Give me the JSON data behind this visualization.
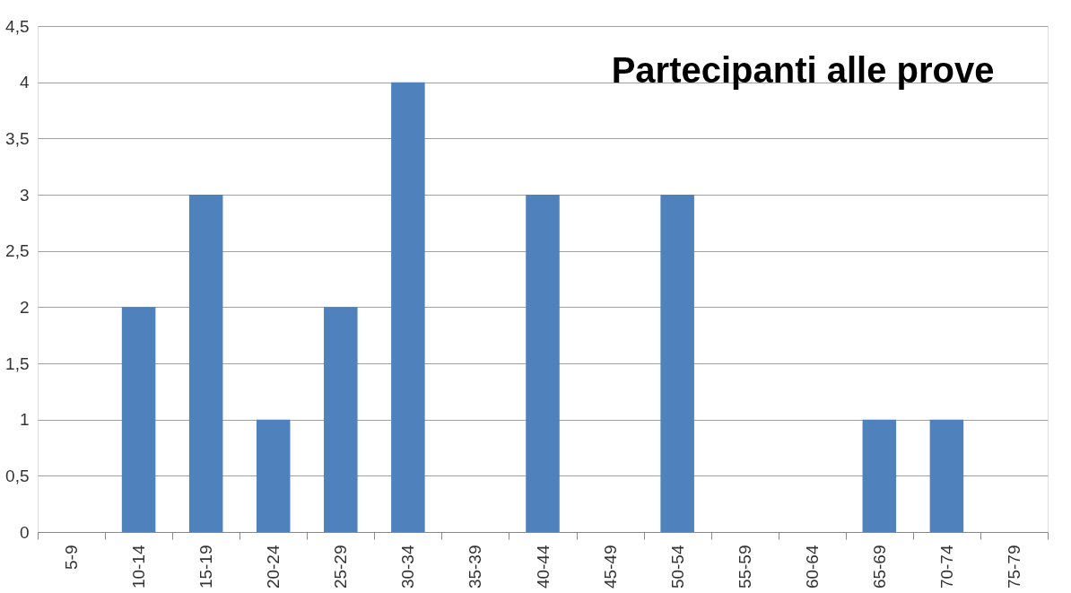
{
  "chart_data": {
    "type": "bar",
    "title": "Partecipanti alle prove",
    "categories": [
      "5-9",
      "10-14",
      "15-19",
      "20-24",
      "25-29",
      "30-34",
      "35-39",
      "40-44",
      "45-49",
      "50-54",
      "55-59",
      "60-64",
      "65-69",
      "70-74",
      "75-79"
    ],
    "values": [
      0,
      2,
      3,
      1,
      2,
      4,
      0,
      3,
      0,
      3,
      0,
      0,
      1,
      1,
      0
    ],
    "color": "#4f81bd",
    "ylim": [
      0,
      4.5
    ],
    "yticks": [
      0,
      {
        "value": 0.5,
        "label": "0,5"
      },
      1,
      {
        "value": 1.5,
        "label": "1,5"
      },
      2,
      {
        "value": 2.5,
        "label": "2,5"
      },
      3,
      {
        "value": 3.5,
        "label": "3,5"
      },
      4,
      {
        "value": 4.5,
        "label": "4,5"
      }
    ],
    "grid": "y"
  }
}
